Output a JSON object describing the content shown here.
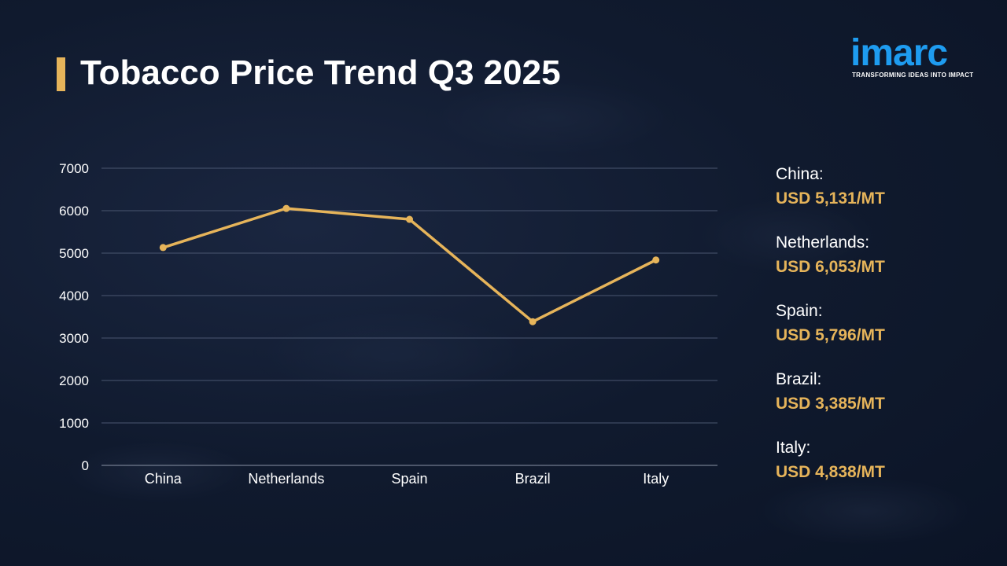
{
  "title": "Tobacco Price Trend Q3 2025",
  "logo": {
    "word": "imarc",
    "tagline": "TRANSFORMING IDEAS INTO IMPACT"
  },
  "colors": {
    "accent": "#e6b45a",
    "logo": "#1e9cf0",
    "background": "#101a2e"
  },
  "chart_data": {
    "type": "line",
    "categories": [
      "China",
      "Netherlands",
      "Spain",
      "Brazil",
      "Italy"
    ],
    "series": [
      {
        "values": [
          5131,
          6053,
          5796,
          3385,
          4838
        ]
      }
    ],
    "ylim": [
      0,
      7000
    ],
    "yticks": [
      0,
      1000,
      2000,
      3000,
      4000,
      5000,
      6000,
      7000
    ],
    "grid": true,
    "color": "#e6b45a"
  },
  "summary": [
    {
      "label": "China:",
      "value": "USD 5,131/MT"
    },
    {
      "label": "Netherlands:",
      "value": "USD 6,053/MT"
    },
    {
      "label": "Spain:",
      "value": "USD 5,796/MT"
    },
    {
      "label": "Brazil:",
      "value": "USD 3,385/MT"
    },
    {
      "label": "Italy:",
      "value": "USD 4,838/MT"
    }
  ]
}
